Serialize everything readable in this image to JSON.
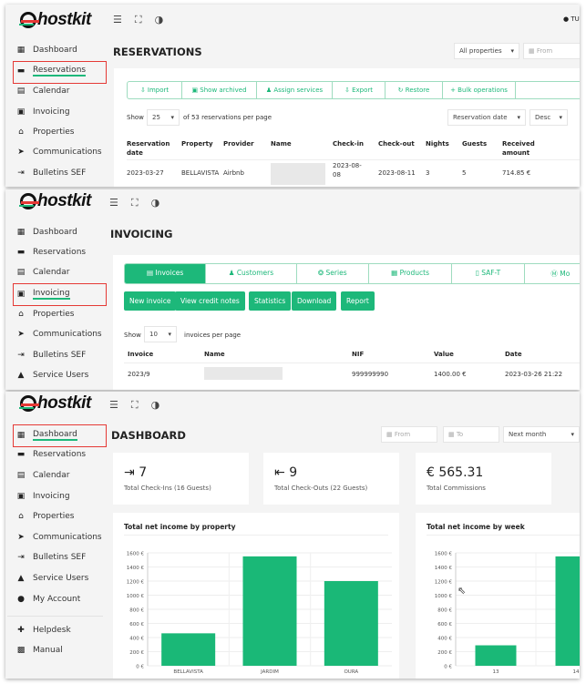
{
  "brand": {
    "name": "hostkit"
  },
  "top_icons": [
    "menu-icon",
    "fullscreen-icon",
    "contrast-icon"
  ],
  "colors": {
    "accent": "#1db87a",
    "highlight": "#e53935"
  },
  "sidebar_items": [
    "Dashboard",
    "Reservations",
    "Calendar",
    "Invoicing",
    "Properties",
    "Communications",
    "Bulletins SEF",
    "Service Users",
    "My Account"
  ],
  "sidebar_footer": [
    "Helpdesk",
    "Manual"
  ],
  "reservations": {
    "title": "RESERVATIONS",
    "user_initials": "TU",
    "property_filter": "All properties",
    "from_placeholder": "From",
    "actions": [
      "Import",
      "Show archived",
      "Assign services",
      "Export",
      "Restore",
      "+ Bulk operations"
    ],
    "show_label": "Show",
    "page_size": "25",
    "per_page_text": "of 53 reservations per page",
    "sort_by": "Reservation date",
    "sort_order": "Desc",
    "columns": [
      "Reservation date",
      "Property",
      "Provider",
      "Name",
      "Check-in",
      "Check-out",
      "Nights",
      "Guests",
      "Received amount"
    ],
    "rows": [
      {
        "reservation_date": "2023-03-27",
        "property": "BELLAVISTA",
        "provider": "Airbnb",
        "name": "",
        "check_in": "2023-08-08",
        "check_out": "2023-08-11",
        "nights": "3",
        "guests": "5",
        "received": "714.85 €"
      }
    ]
  },
  "invoicing": {
    "title": "INVOICING",
    "tabs": [
      "Invoices",
      "Customers",
      "Series",
      "Products",
      "SAF-T",
      "Mo"
    ],
    "buttons": [
      "New invoice",
      "View credit notes",
      "Statistics",
      "Download",
      "Report"
    ],
    "show_label": "Show",
    "page_size": "10",
    "per_page_text": "invoices per page",
    "columns": [
      "Invoice",
      "Name",
      "NIF",
      "Value",
      "Date"
    ],
    "rows": [
      {
        "invoice": "2023/9",
        "name": "",
        "nif": "999999990",
        "value": "1400.00 €",
        "date": "2023-03-26 21:22"
      }
    ]
  },
  "dashboard": {
    "title": "DASHBOARD",
    "from_placeholder": "From",
    "to_placeholder": "To",
    "period": "Next month",
    "stats": [
      {
        "value": "7",
        "label": "Total Check-Ins (16 Guests)",
        "icon": "check-in-icon"
      },
      {
        "value": "9",
        "label": "Total Check-Outs (22 Guests)",
        "icon": "check-out-icon"
      },
      {
        "value": "€ 565.31",
        "label": "Total Commissions",
        "icon": ""
      }
    ]
  },
  "chart_data": [
    {
      "type": "bar",
      "title": "Total net income by property",
      "categories": [
        "BELLAVISTA",
        "JARDIM",
        "OURA"
      ],
      "values": [
        460,
        1550,
        1200
      ],
      "ylim": [
        0,
        1600
      ],
      "yticks": [
        "0 €",
        "200 €",
        "400 €",
        "600 €",
        "800 €",
        "1000 €",
        "1200 €",
        "1400 €",
        "1600 €"
      ],
      "grid": true,
      "color": "#1ab877"
    },
    {
      "type": "bar",
      "title": "Total net income by week",
      "categories": [
        "13",
        "14"
      ],
      "values": [
        290,
        1550
      ],
      "ylim": [
        0,
        1600
      ],
      "yticks": [
        "0 €",
        "200 €",
        "400 €",
        "600 €",
        "800 €",
        "1000 €",
        "1200 €",
        "1400 €",
        "1600 €"
      ],
      "grid": true,
      "color": "#1ab877"
    }
  ]
}
